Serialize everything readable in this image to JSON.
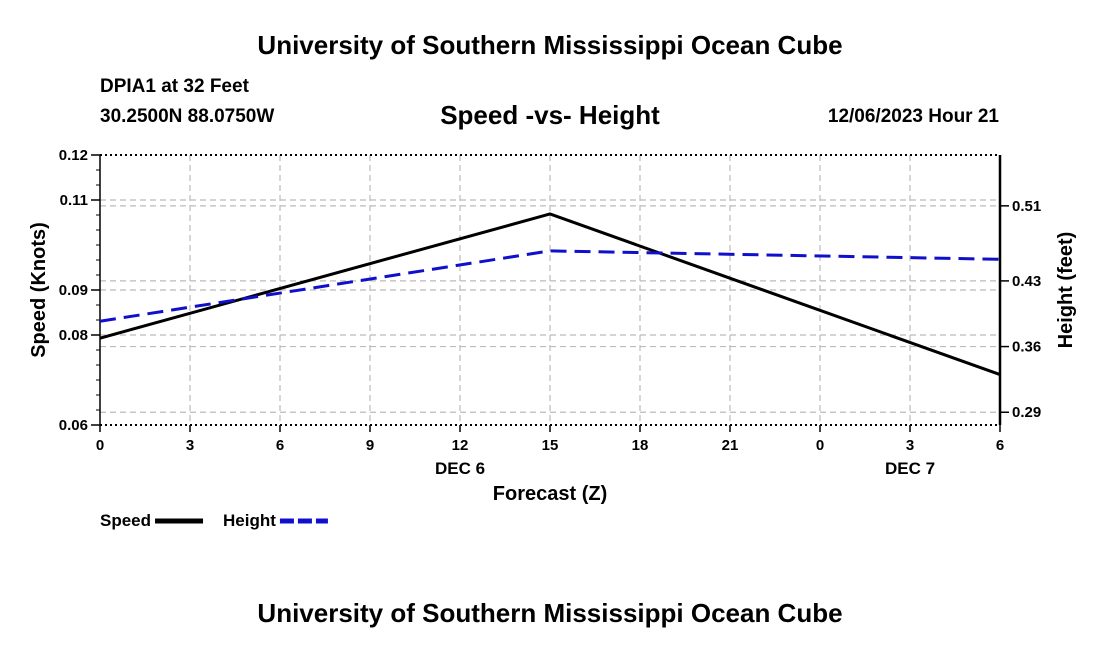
{
  "header": {
    "title": "University of Southern Mississippi Ocean Cube",
    "station": "DPIA1 at 32 Feet",
    "coords": "30.2500N  88.0750W",
    "subtitle": "Speed -vs- Height",
    "datetime": "12/06/2023 Hour 21"
  },
  "footer": {
    "title": "University of Southern Mississippi Ocean Cube"
  },
  "chart_data": {
    "type": "line",
    "title": "Speed -vs- Height",
    "xlabel": "Forecast (Z)",
    "ylabel": "Speed (Knots)",
    "y2label": "Height (feet)",
    "x": [
      0,
      3,
      6,
      9,
      12,
      15,
      18,
      21,
      24,
      27,
      30
    ],
    "xlim": [
      0,
      30
    ],
    "x_tick_labels": [
      "0",
      "3",
      "6",
      "9",
      "12",
      "15",
      "18",
      "21",
      "0",
      "3",
      "6"
    ],
    "date_labels": [
      {
        "label": "DEC 6",
        "x": 12
      },
      {
        "label": "DEC 7",
        "x": 27
      }
    ],
    "ylim": [
      0.06,
      0.12
    ],
    "y_ticks": [
      0.06,
      0.08,
      0.09,
      0.11,
      0.12
    ],
    "y2lim": [
      0.2764,
      0.5642
    ],
    "y2_ticks": [
      0.29,
      0.36,
      0.43,
      0.51
    ],
    "series": [
      {
        "name": "Speed",
        "axis": "left",
        "color": "#000000",
        "style": "solid",
        "x": [
          0,
          15,
          30
        ],
        "values": [
          0.0793,
          0.1069,
          0.0712
        ]
      },
      {
        "name": "Height",
        "axis": "right",
        "color": "#1010cc",
        "style": "dashed",
        "x": [
          0,
          15,
          30
        ],
        "values": [
          0.387,
          0.462,
          0.453
        ]
      }
    ],
    "grid": true,
    "legend": [
      {
        "label": "Speed",
        "color": "#000000",
        "style": "solid"
      },
      {
        "label": "Height",
        "color": "#1010cc",
        "style": "dashed"
      }
    ]
  }
}
